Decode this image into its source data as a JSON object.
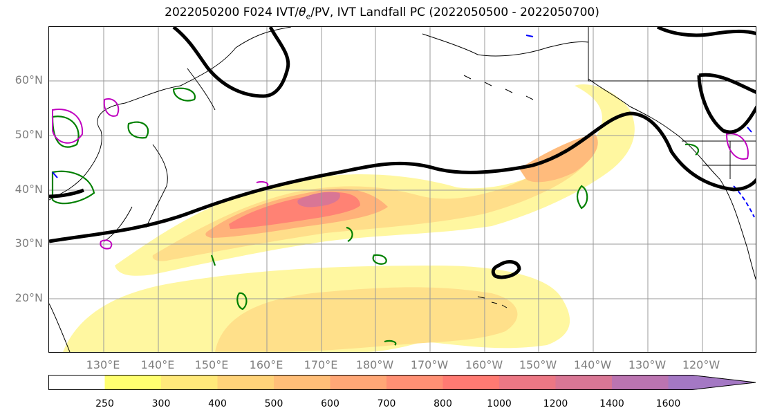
{
  "title_prefix": "2022050200 F024 IVT/",
  "title_theta": "θ",
  "title_theta_sub": "e",
  "title_suffix": "/PV, IVT Landfall PC (2022050500 - 2022050700)",
  "lat_labels": [
    "60°N",
    "50°N",
    "40°N",
    "30°N",
    "20°N"
  ],
  "lon_labels": [
    "130°E",
    "140°E",
    "150°E",
    "160°E",
    "170°E",
    "180°W",
    "170°W",
    "160°W",
    "150°W",
    "140°W",
    "130°W",
    "120°W"
  ],
  "colorbar": {
    "ticks": [
      "250",
      "300",
      "400",
      "500",
      "600",
      "700",
      "800",
      "1000",
      "1200",
      "1400",
      "1600"
    ],
    "colors": [
      "#ffffff",
      "#ffff70",
      "#ffe97a",
      "#ffd379",
      "#ffbe78",
      "#ffa776",
      "#ff9074",
      "#ff7a72",
      "#ec7784",
      "#d97695",
      "#bb74b1",
      "#a478c4"
    ]
  },
  "colors": {
    "pc_contour": "#000000",
    "theta_e_contour": "#008000",
    "pv_high": "#c000c0",
    "pv_low": "#0000ff",
    "grid": "#999999",
    "coastline": "#000000"
  }
}
